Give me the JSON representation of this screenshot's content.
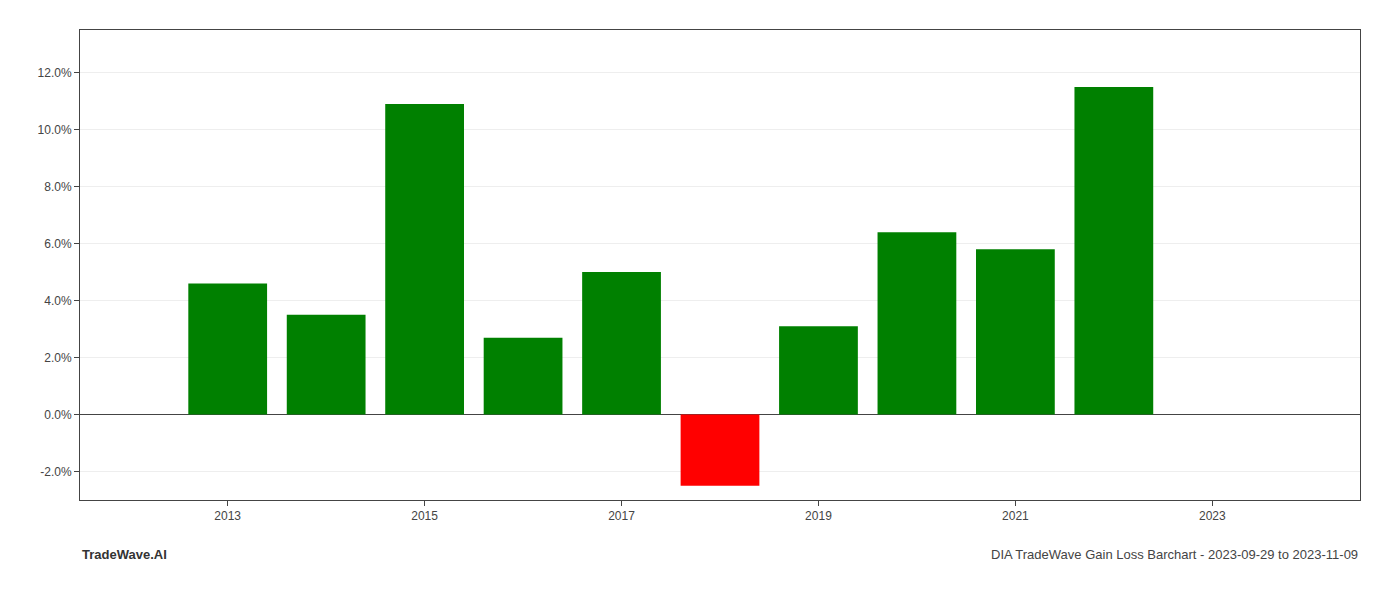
{
  "chart_data": {
    "type": "bar",
    "title": "DIA TradeWave Gain Loss Barchart - 2023-09-29 to 2023-11-09",
    "annotations": [
      "TradeWave.AI"
    ],
    "x": [
      2013,
      2014,
      2015,
      2016,
      2017,
      2018,
      2019,
      2020,
      2021,
      2022
    ],
    "values": [
      0.046,
      0.035,
      0.109,
      0.027,
      0.05,
      -0.025,
      0.031,
      0.064,
      0.058,
      0.115
    ],
    "colors": [
      "#008000",
      "#008000",
      "#008000",
      "#008000",
      "#008000",
      "#ff0000",
      "#008000",
      "#008000",
      "#008000",
      "#008000"
    ],
    "xlim": [
      2011.5,
      2024.5
    ],
    "xticks": [
      2013,
      2015,
      2017,
      2019,
      2021,
      2023
    ],
    "ylim": [
      -0.03,
      0.135
    ],
    "yticks": [
      {
        "value": -0.02,
        "label": "-2.0%"
      },
      {
        "value": 0.0,
        "label": "0.0%"
      },
      {
        "value": 0.02,
        "label": "2.0%"
      },
      {
        "value": 0.04,
        "label": "4.0%"
      },
      {
        "value": 0.06,
        "label": "6.0%"
      },
      {
        "value": 0.08,
        "label": "8.0%"
      },
      {
        "value": 0.1,
        "label": "10.0%"
      },
      {
        "value": 0.12,
        "label": "12.0%"
      }
    ],
    "grid": true
  }
}
